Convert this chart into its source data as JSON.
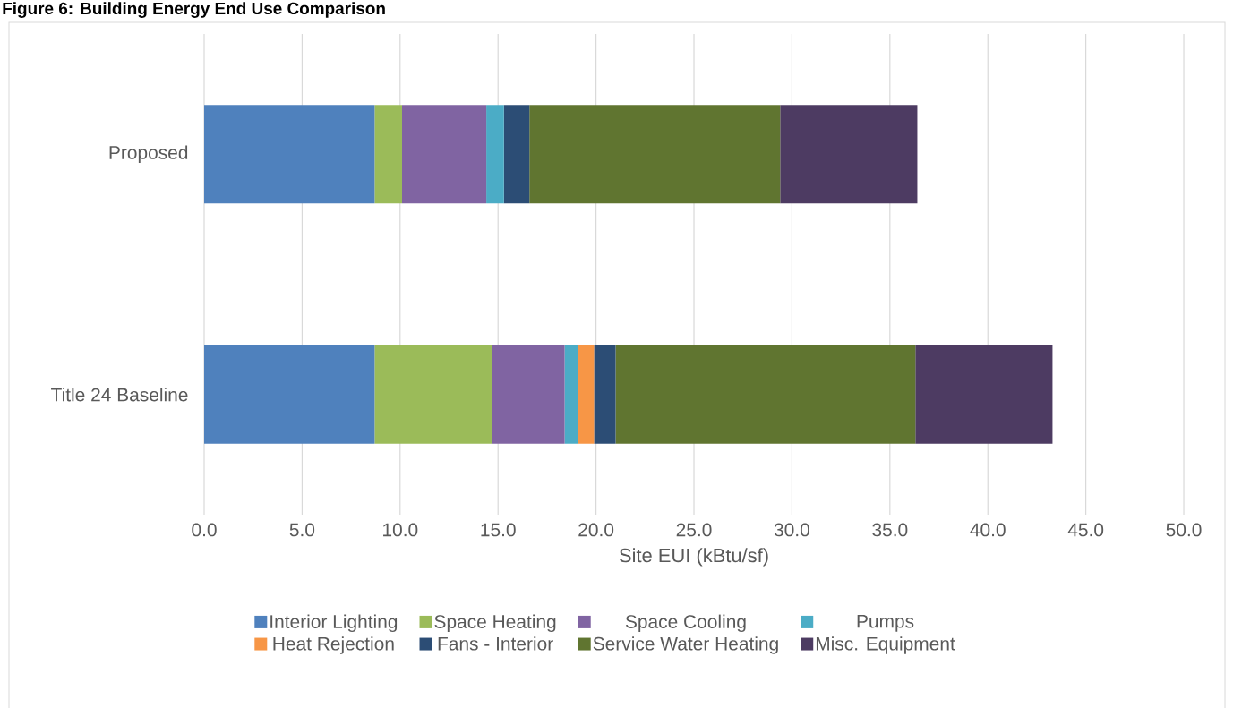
{
  "chart_data": {
    "type": "bar",
    "orientation": "horizontal",
    "stacked": true,
    "title": "Figure 6: Building Energy End Use Comparison",
    "xlabel": "Site EUI (kBtu/sf)",
    "categories": [
      "Proposed",
      "Title 24 Baseline"
    ],
    "series": [
      {
        "name": "Interior Lighting",
        "color": "#4f81bd",
        "values": [
          8.7,
          8.7
        ]
      },
      {
        "name": "Space Heating",
        "color": "#9bbb59",
        "values": [
          1.4,
          6.0
        ]
      },
      {
        "name": "Space Cooling",
        "color": "#8064a2",
        "values": [
          4.3,
          3.7
        ]
      },
      {
        "name": "Pumps",
        "color": "#4bacc6",
        "values": [
          0.9,
          0.7
        ]
      },
      {
        "name": "Heat Rejection",
        "color": "#f79646",
        "values": [
          0,
          0.8
        ]
      },
      {
        "name": "Fans - Interior",
        "color": "#2c4d75",
        "values": [
          1.3,
          1.1
        ]
      },
      {
        "name": "Service Water Heating",
        "color": "#607530",
        "values": [
          12.8,
          15.3
        ]
      },
      {
        "name": "Misc. Equipment",
        "color": "#4d3b62",
        "values": [
          7.0,
          7.0
        ]
      }
    ],
    "xlim": [
      0,
      50
    ],
    "xticks": [
      {
        "value": 0,
        "label": "0.0"
      },
      {
        "value": 5,
        "label": "5.0"
      },
      {
        "value": 10,
        "label": "10.0"
      },
      {
        "value": 15,
        "label": "15.0"
      },
      {
        "value": 20,
        "label": "20.0"
      },
      {
        "value": 25,
        "label": "25.0"
      },
      {
        "value": 30,
        "label": "30.0"
      },
      {
        "value": 35,
        "label": "35.0"
      },
      {
        "value": 40,
        "label": "40.0"
      },
      {
        "value": 45,
        "label": "45.0"
      },
      {
        "value": 50,
        "label": "50.0"
      }
    ],
    "grid": "x",
    "legend": "bottom"
  }
}
